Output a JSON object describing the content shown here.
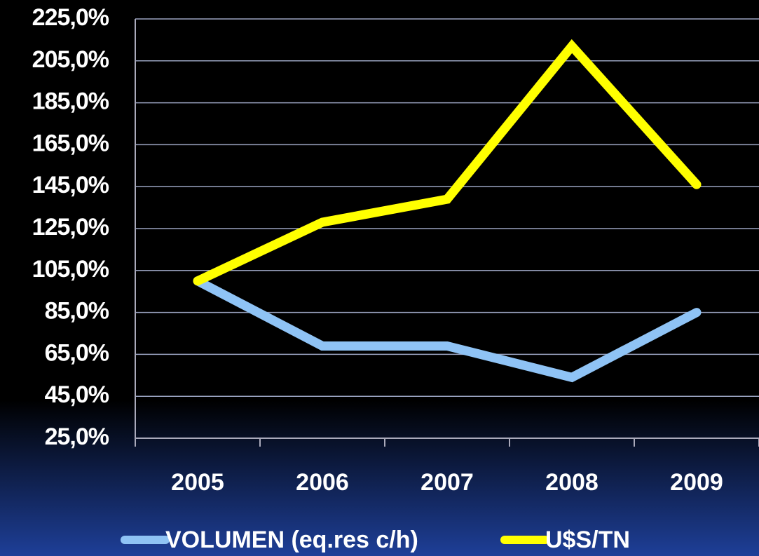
{
  "chart_data": {
    "type": "line",
    "categories": [
      "2005",
      "2006",
      "2007",
      "2008",
      "2009"
    ],
    "series": [
      {
        "name": "VOLUMEN (eq.res c/h)",
        "color": "#8fc3f5",
        "values": [
          100,
          69,
          69,
          54,
          85
        ]
      },
      {
        "name": "U$S/TN",
        "color": "#ffff00",
        "values": [
          100,
          128,
          139,
          212,
          146
        ]
      }
    ],
    "ylim": [
      25,
      225
    ],
    "yticks": [
      {
        "value": 25,
        "label": "25,0%"
      },
      {
        "value": 45,
        "label": "45,0%"
      },
      {
        "value": 65,
        "label": "65,0%"
      },
      {
        "value": 85,
        "label": "85,0%"
      },
      {
        "value": 105,
        "label": "105,0%"
      },
      {
        "value": 125,
        "label": "125,0%"
      },
      {
        "value": 145,
        "label": "145,0%"
      },
      {
        "value": 165,
        "label": "165,0%"
      },
      {
        "value": 185,
        "label": "185,0%"
      },
      {
        "value": 205,
        "label": "205,0%"
      },
      {
        "value": 225,
        "label": "225,0%"
      }
    ],
    "grid": true
  }
}
